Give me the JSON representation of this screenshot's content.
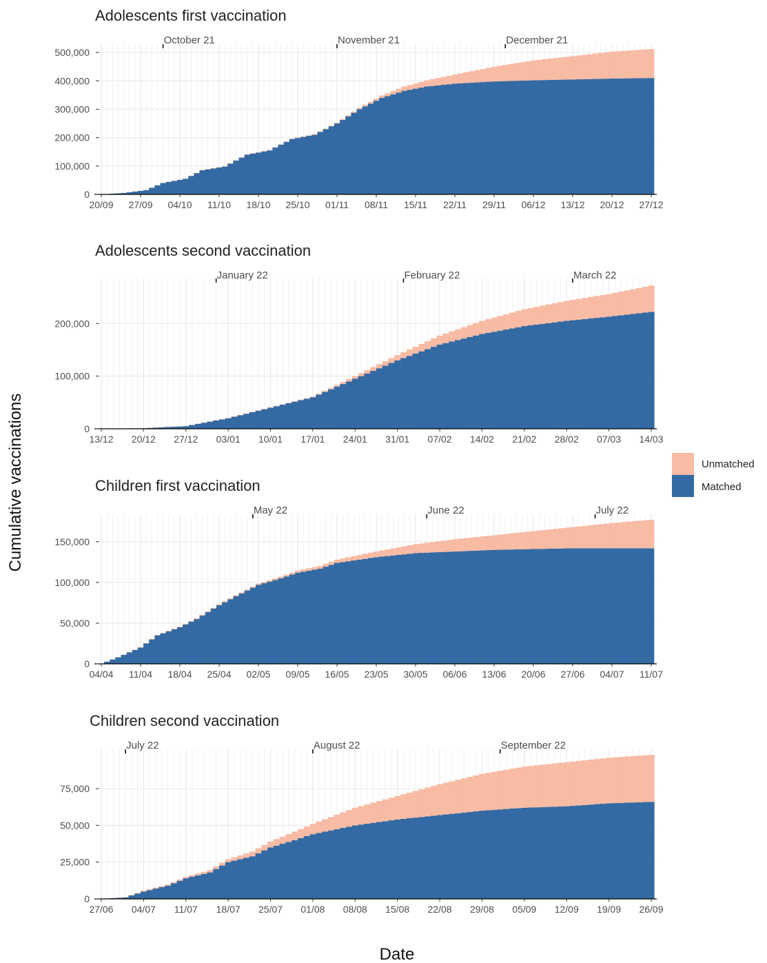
{
  "ylabel": "Cumulative vaccinations",
  "xlabel": "Date",
  "legend": [
    {
      "label": "Unmatched",
      "color": "#f8bba4"
    },
    {
      "label": "Matched",
      "color": "#346aa3"
    }
  ],
  "colors": {
    "matched": "#346aa3",
    "unmatched": "#f8bba4",
    "grid": "#ebebeb"
  },
  "chart_data": [
    {
      "type": "bar",
      "stacked": true,
      "title": "Adolescents first vaccination",
      "ylim": [
        0,
        510000
      ],
      "yticks": [
        0,
        100000,
        200000,
        300000,
        400000,
        500000
      ],
      "ytick_labels": [
        "0",
        "100,000",
        "200,000",
        "300,000",
        "400,000",
        "500,000"
      ],
      "x_range": [
        "2021-09-20",
        "2021-12-27"
      ],
      "xtick_dates": [
        "2021-09-20",
        "2021-09-27",
        "2021-10-04",
        "2021-10-11",
        "2021-10-18",
        "2021-10-25",
        "2021-11-01",
        "2021-11-08",
        "2021-11-15",
        "2021-11-22",
        "2021-11-29",
        "2021-12-06",
        "2021-12-13",
        "2021-12-20",
        "2021-12-27"
      ],
      "xtick_labels": [
        "20/09",
        "27/09",
        "04/10",
        "11/10",
        "18/10",
        "25/10",
        "01/11",
        "08/11",
        "15/11",
        "22/11",
        "29/11",
        "06/12",
        "13/12",
        "20/12",
        "27/12"
      ],
      "month_marks": [
        {
          "date": "2021-10-01",
          "label": "October 21"
        },
        {
          "date": "2021-11-01",
          "label": "November 21"
        },
        {
          "date": "2021-12-01",
          "label": "December 21"
        }
      ],
      "series": [
        {
          "name": "Matched",
          "points": [
            [
              "2021-09-20",
              0
            ],
            [
              "2021-09-24",
              5000
            ],
            [
              "2021-09-28",
              15000
            ],
            [
              "2021-10-01",
              40000
            ],
            [
              "2021-10-05",
              55000
            ],
            [
              "2021-10-08",
              85000
            ],
            [
              "2021-10-12",
              98000
            ],
            [
              "2021-10-16",
              140000
            ],
            [
              "2021-10-20",
              155000
            ],
            [
              "2021-10-24",
              195000
            ],
            [
              "2021-10-28",
              210000
            ],
            [
              "2021-11-01",
              250000
            ],
            [
              "2021-11-05",
              300000
            ],
            [
              "2021-11-09",
              340000
            ],
            [
              "2021-11-13",
              365000
            ],
            [
              "2021-11-17",
              380000
            ],
            [
              "2021-11-22",
              390000
            ],
            [
              "2021-11-29",
              398000
            ],
            [
              "2021-12-06",
              402000
            ],
            [
              "2021-12-13",
              405000
            ],
            [
              "2021-12-20",
              408000
            ],
            [
              "2021-12-27",
              410000
            ]
          ]
        },
        {
          "name": "Unmatched",
          "points": [
            [
              "2021-09-20",
              0
            ],
            [
              "2021-11-01",
              2000
            ],
            [
              "2021-11-08",
              7000
            ],
            [
              "2021-11-15",
              18000
            ],
            [
              "2021-11-22",
              32000
            ],
            [
              "2021-11-29",
              52000
            ],
            [
              "2021-12-06",
              70000
            ],
            [
              "2021-12-13",
              82000
            ],
            [
              "2021-12-20",
              95000
            ],
            [
              "2021-12-27",
              102000
            ]
          ]
        }
      ]
    },
    {
      "type": "bar",
      "stacked": true,
      "title": "Adolescents second vaccination",
      "ylim": [
        0,
        275000
      ],
      "yticks": [
        0,
        100000,
        200000
      ],
      "ytick_labels": [
        "0",
        "100,000",
        "200,000"
      ],
      "x_range": [
        "2021-12-13",
        "2022-03-14"
      ],
      "xtick_dates": [
        "2021-12-13",
        "2021-12-20",
        "2021-12-27",
        "2022-01-03",
        "2022-01-10",
        "2022-01-17",
        "2022-01-24",
        "2022-01-31",
        "2022-02-07",
        "2022-02-14",
        "2022-02-21",
        "2022-02-28",
        "2022-03-07",
        "2022-03-14"
      ],
      "xtick_labels": [
        "13/12",
        "20/12",
        "27/12",
        "03/01",
        "10/01",
        "17/01",
        "24/01",
        "31/01",
        "07/02",
        "14/02",
        "21/02",
        "28/02",
        "07/03",
        "14/03"
      ],
      "month_marks": [
        {
          "date": "2022-01-01",
          "label": "January 22"
        },
        {
          "date": "2022-02-01",
          "label": "February 22"
        },
        {
          "date": "2022-03-01",
          "label": "March 22"
        }
      ],
      "series": [
        {
          "name": "Matched",
          "points": [
            [
              "2021-12-13",
              0
            ],
            [
              "2021-12-20",
              1000
            ],
            [
              "2021-12-27",
              5000
            ],
            [
              "2022-01-03",
              20000
            ],
            [
              "2022-01-10",
              40000
            ],
            [
              "2022-01-17",
              60000
            ],
            [
              "2022-01-24",
              95000
            ],
            [
              "2022-01-31",
              130000
            ],
            [
              "2022-02-07",
              160000
            ],
            [
              "2022-02-14",
              180000
            ],
            [
              "2022-02-21",
              195000
            ],
            [
              "2022-02-28",
              205000
            ],
            [
              "2022-03-07",
              213000
            ],
            [
              "2022-03-14",
              222000
            ]
          ]
        },
        {
          "name": "Unmatched",
          "points": [
            [
              "2021-12-13",
              0
            ],
            [
              "2022-01-17",
              1000
            ],
            [
              "2022-01-24",
              5000
            ],
            [
              "2022-01-31",
              10000
            ],
            [
              "2022-02-07",
              17000
            ],
            [
              "2022-02-14",
              25000
            ],
            [
              "2022-02-21",
              32000
            ],
            [
              "2022-02-28",
              38000
            ],
            [
              "2022-03-07",
              43000
            ],
            [
              "2022-03-14",
              50000
            ]
          ]
        }
      ]
    },
    {
      "type": "bar",
      "stacked": true,
      "title": "Children first vaccination",
      "ylim": [
        0,
        177000
      ],
      "yticks": [
        0,
        50000,
        100000,
        150000
      ],
      "ytick_labels": [
        "0",
        "50,000",
        "100,000",
        "150,000"
      ],
      "x_range": [
        "2022-04-04",
        "2022-07-11"
      ],
      "xtick_dates": [
        "2022-04-04",
        "2022-04-11",
        "2022-04-18",
        "2022-04-25",
        "2022-05-02",
        "2022-05-09",
        "2022-05-16",
        "2022-05-23",
        "2022-05-30",
        "2022-06-06",
        "2022-06-13",
        "2022-06-20",
        "2022-06-27",
        "2022-07-04",
        "2022-07-11"
      ],
      "xtick_labels": [
        "04/04",
        "11/04",
        "18/04",
        "25/04",
        "02/05",
        "09/05",
        "16/05",
        "23/05",
        "30/05",
        "06/06",
        "13/06",
        "20/06",
        "27/06",
        "04/07",
        "11/07"
      ],
      "month_marks": [
        {
          "date": "2022-05-01",
          "label": "May 22"
        },
        {
          "date": "2022-06-01",
          "label": "June 22"
        },
        {
          "date": "2022-07-01",
          "label": "July 22"
        }
      ],
      "series": [
        {
          "name": "Matched",
          "points": [
            [
              "2022-04-04",
              0
            ],
            [
              "2022-04-07",
              8000
            ],
            [
              "2022-04-11",
              20000
            ],
            [
              "2022-04-14",
              35000
            ],
            [
              "2022-04-18",
              45000
            ],
            [
              "2022-04-21",
              55000
            ],
            [
              "2022-04-25",
              72000
            ],
            [
              "2022-04-28",
              83000
            ],
            [
              "2022-05-02",
              97000
            ],
            [
              "2022-05-06",
              105000
            ],
            [
              "2022-05-09",
              112000
            ],
            [
              "2022-05-13",
              117000
            ],
            [
              "2022-05-16",
              124000
            ],
            [
              "2022-05-23",
              131000
            ],
            [
              "2022-05-30",
              136000
            ],
            [
              "2022-06-06",
              138000
            ],
            [
              "2022-06-13",
              140000
            ],
            [
              "2022-06-20",
              141000
            ],
            [
              "2022-06-27",
              142000
            ],
            [
              "2022-07-04",
              142000
            ],
            [
              "2022-07-11",
              142000
            ]
          ]
        },
        {
          "name": "Unmatched",
          "points": [
            [
              "2022-04-04",
              0
            ],
            [
              "2022-05-02",
              1500
            ],
            [
              "2022-05-09",
              2500
            ],
            [
              "2022-05-16",
              4000
            ],
            [
              "2022-05-23",
              7000
            ],
            [
              "2022-05-30",
              11000
            ],
            [
              "2022-06-06",
              15000
            ],
            [
              "2022-06-13",
              18000
            ],
            [
              "2022-06-20",
              22000
            ],
            [
              "2022-06-27",
              26000
            ],
            [
              "2022-07-04",
              31000
            ],
            [
              "2022-07-11",
              35000
            ]
          ]
        }
      ]
    },
    {
      "type": "bar",
      "stacked": true,
      "title": "Children second vaccination",
      "ylim": [
        0,
        98000
      ],
      "yticks": [
        0,
        25000,
        50000,
        75000
      ],
      "ytick_labels": [
        "0",
        "25,000",
        "50,000",
        "75,000"
      ],
      "x_range": [
        "2022-06-27",
        "2022-09-26"
      ],
      "xtick_dates": [
        "2022-06-27",
        "2022-07-04",
        "2022-07-11",
        "2022-07-18",
        "2022-07-25",
        "2022-08-01",
        "2022-08-08",
        "2022-08-15",
        "2022-08-22",
        "2022-08-29",
        "2022-09-05",
        "2022-09-12",
        "2022-09-19",
        "2022-09-26"
      ],
      "xtick_labels": [
        "27/06",
        "04/07",
        "11/07",
        "18/07",
        "25/07",
        "01/08",
        "08/08",
        "15/08",
        "22/08",
        "29/08",
        "05/09",
        "12/09",
        "19/09",
        "26/09"
      ],
      "month_marks": [
        {
          "date": "2022-07-01",
          "label": "July 22"
        },
        {
          "date": "2022-08-01",
          "label": "August 22"
        },
        {
          "date": "2022-09-01",
          "label": "September 22"
        }
      ],
      "series": [
        {
          "name": "Matched",
          "points": [
            [
              "2022-06-27",
              0
            ],
            [
              "2022-07-01",
              1000
            ],
            [
              "2022-07-04",
              5000
            ],
            [
              "2022-07-08",
              9000
            ],
            [
              "2022-07-11",
              14000
            ],
            [
              "2022-07-15",
              18000
            ],
            [
              "2022-07-18",
              25000
            ],
            [
              "2022-07-22",
              29000
            ],
            [
              "2022-07-25",
              35000
            ],
            [
              "2022-07-29",
              40000
            ],
            [
              "2022-08-01",
              44000
            ],
            [
              "2022-08-08",
              50000
            ],
            [
              "2022-08-15",
              54000
            ],
            [
              "2022-08-22",
              57000
            ],
            [
              "2022-08-29",
              60000
            ],
            [
              "2022-09-05",
              62000
            ],
            [
              "2022-09-12",
              63000
            ],
            [
              "2022-09-19",
              65000
            ],
            [
              "2022-09-26",
              66000
            ]
          ]
        },
        {
          "name": "Unmatched",
          "points": [
            [
              "2022-06-27",
              0
            ],
            [
              "2022-07-11",
              1000
            ],
            [
              "2022-07-18",
              2000
            ],
            [
              "2022-07-25",
              4000
            ],
            [
              "2022-08-01",
              7000
            ],
            [
              "2022-08-08",
              12000
            ],
            [
              "2022-08-15",
              16000
            ],
            [
              "2022-08-22",
              21000
            ],
            [
              "2022-08-29",
              25000
            ],
            [
              "2022-09-05",
              28000
            ],
            [
              "2022-09-12",
              30000
            ],
            [
              "2022-09-19",
              31000
            ],
            [
              "2022-09-26",
              32000
            ]
          ]
        }
      ]
    }
  ]
}
